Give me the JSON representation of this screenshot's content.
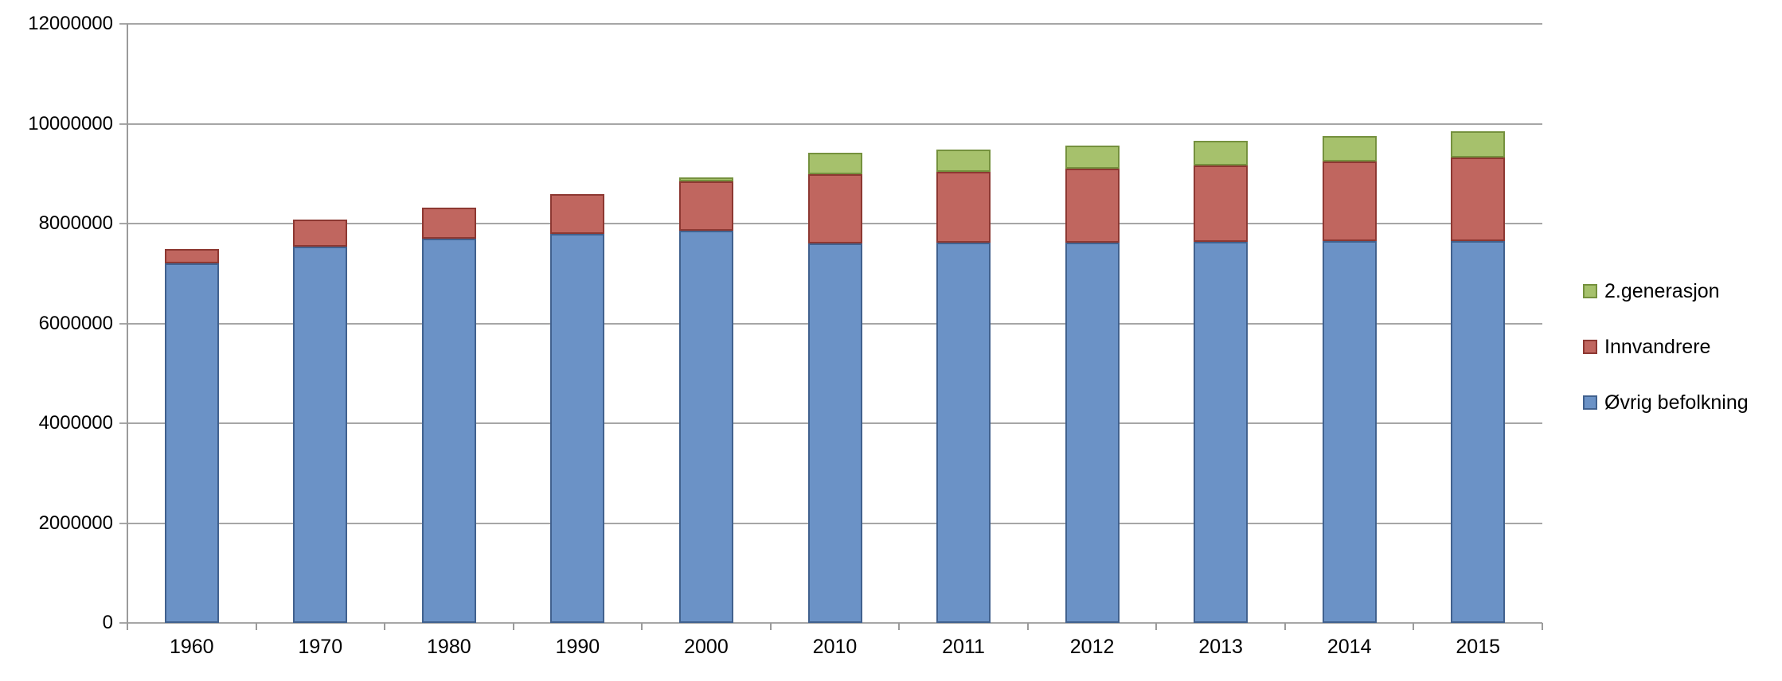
{
  "chart_data": {
    "type": "bar",
    "stacked": true,
    "title": "",
    "xlabel": "",
    "ylabel": "",
    "grid": true,
    "background": "#ffffff",
    "categories": [
      "1960",
      "1970",
      "1980",
      "1990",
      "2000",
      "2010",
      "2011",
      "2012",
      "2013",
      "2014",
      "2015"
    ],
    "series": [
      {
        "name": "Øvrig befolkning",
        "color": "#6b92c6",
        "border_color": "#41618e",
        "values": [
          7198000,
          7540000,
          7690000,
          7800000,
          7850000,
          7600000,
          7610000,
          7620000,
          7635000,
          7645000,
          7655000
        ]
      },
      {
        "name": "Innvandrere",
        "color": "#c0665f",
        "border_color": "#8d3832",
        "values": [
          300000,
          540000,
          630000,
          790000,
          1000000,
          1385000,
          1425000,
          1475000,
          1535000,
          1605000,
          1675000
        ]
      },
      {
        "name": "2.generasjon",
        "color": "#a6c16c",
        "border_color": "#75913e",
        "values": [
          0,
          0,
          0,
          0,
          75000,
          430000,
          445000,
          460000,
          480000,
          500000,
          520000
        ]
      }
    ],
    "y_axis": {
      "min": 0,
      "max": 12000000,
      "step": 2000000,
      "tick_labels": [
        "0",
        "2000000",
        "4000000",
        "6000000",
        "8000000",
        "10000000",
        "12000000"
      ]
    },
    "x_axis": {
      "tick_labels": [
        "1960",
        "1970",
        "1980",
        "1990",
        "2000",
        "2010",
        "2011",
        "2012",
        "2013",
        "2014",
        "2015"
      ]
    },
    "legend": {
      "position": "right",
      "order_top_to_bottom": [
        "2.generasjon",
        "Innvandrere",
        "Øvrig befolkning"
      ]
    },
    "colors": {
      "gridline": "#a6a6a6",
      "axis": "#9b9b9b",
      "text": "#000000"
    }
  }
}
